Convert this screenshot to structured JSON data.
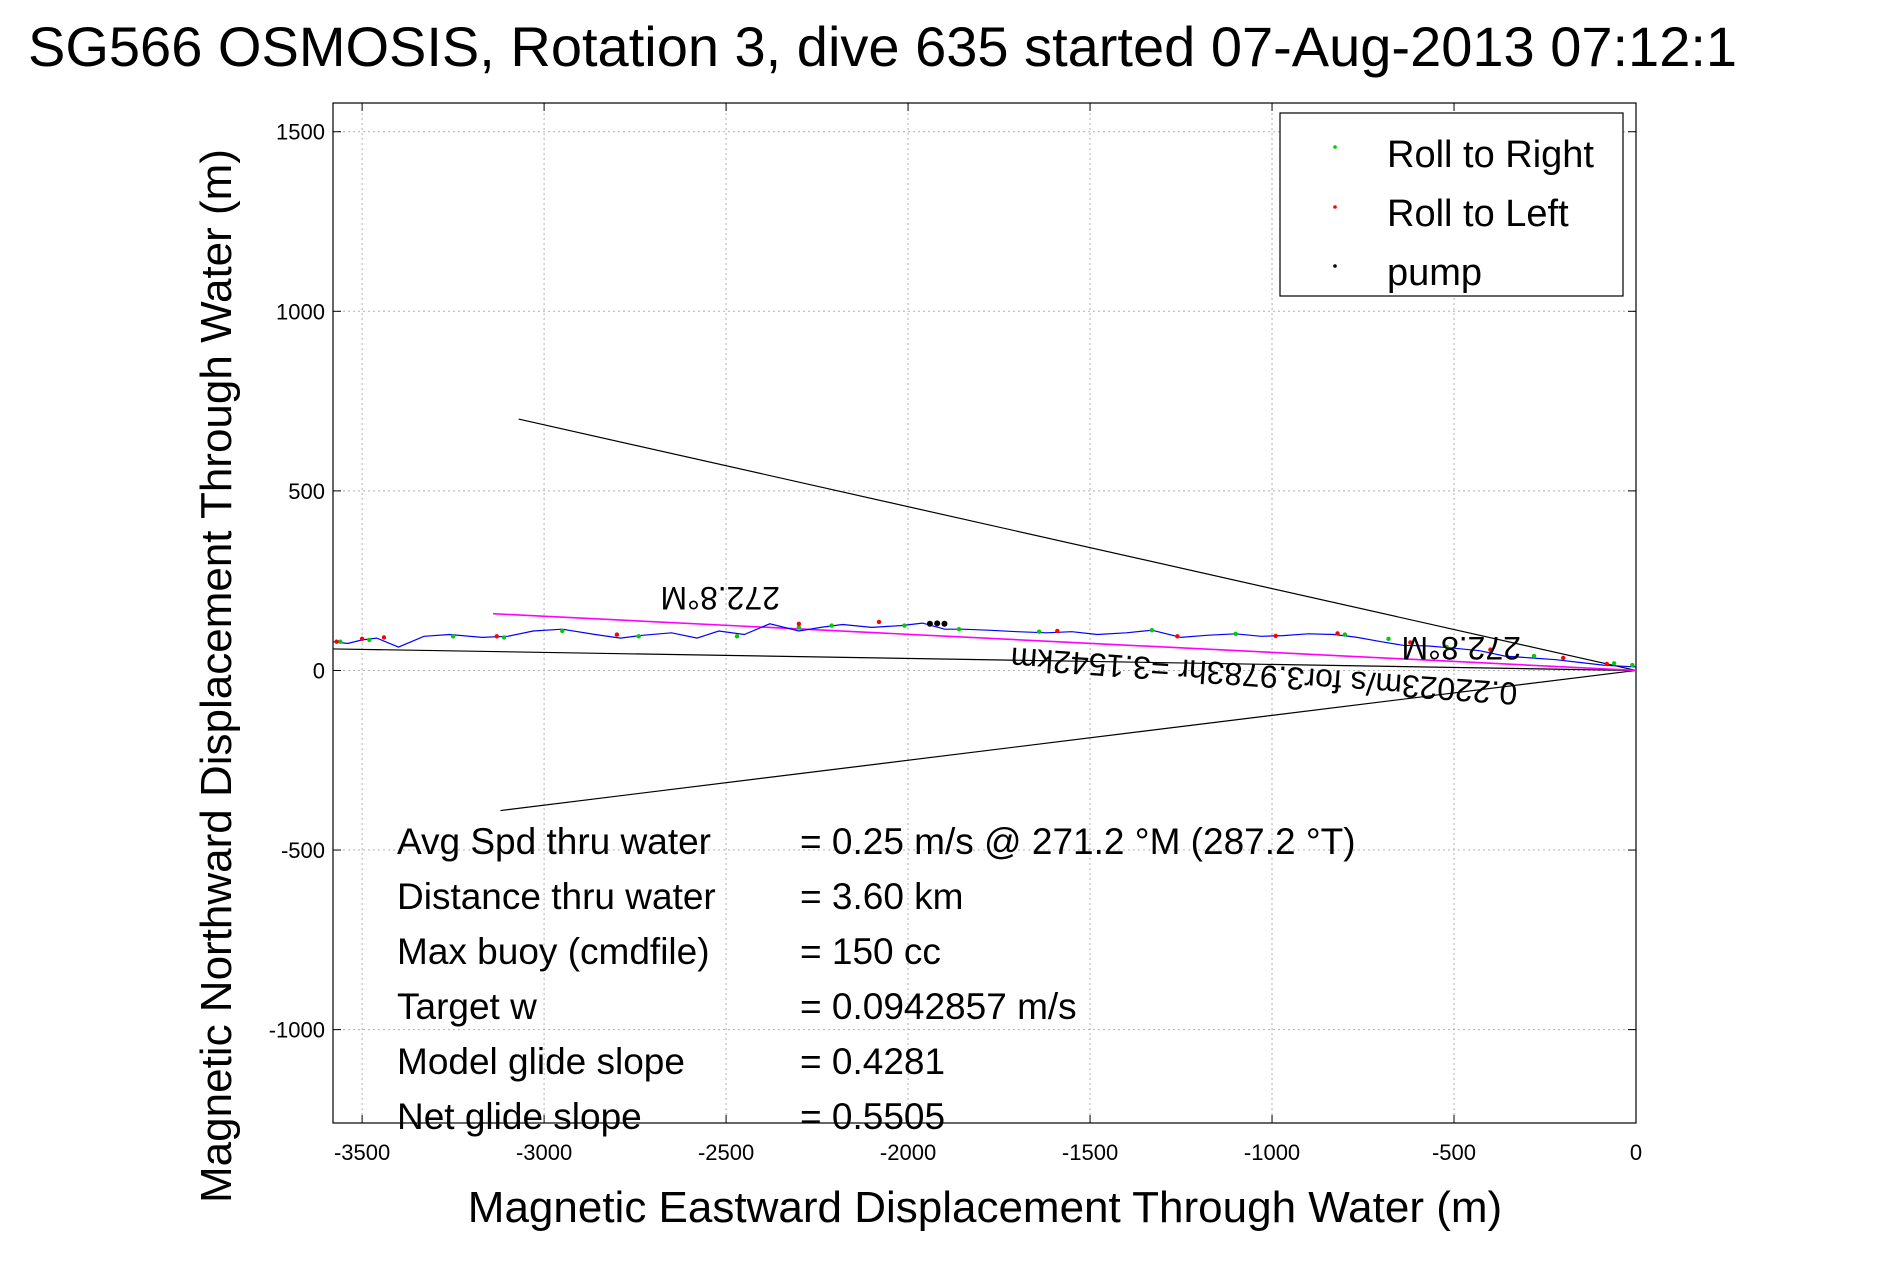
{
  "chart_data": {
    "type": "line",
    "title": "SG566 OSMOSIS, Rotation 3, dive 635 started 07-Aug-2013 07:12:1",
    "xlabel": "Magnetic Eastward Displacement Through Water (m)",
    "ylabel": "Magnetic Northward Displacement Through Water (m)",
    "xlim": [
      -3580,
      0
    ],
    "ylim": [
      -1260,
      1580
    ],
    "xticks": [
      -3500,
      -3000,
      -2500,
      -2000,
      -1500,
      -1000,
      -500,
      0
    ],
    "xtick_labels": [
      "-3500",
      "-3000",
      "-2500",
      "-2000",
      "-1500",
      "-1000",
      "-500",
      "0"
    ],
    "yticks": [
      -1000,
      -500,
      0,
      500,
      1000,
      1500
    ],
    "ytick_labels": [
      "-1000",
      "-500",
      "0",
      "500",
      "1000",
      "1500"
    ],
    "grid": true,
    "legend_position": "top-right",
    "legend": [
      {
        "label": "Roll to Right",
        "color": "#00cc00"
      },
      {
        "label": "Roll to Left",
        "color": "#ff0000"
      },
      {
        "label": "pump",
        "color": "#000000"
      }
    ],
    "track": {
      "color": "#0000ff",
      "x": [
        -3580,
        -3540,
        -3500,
        -3460,
        -3400,
        -3330,
        -3260,
        -3170,
        -3100,
        -3030,
        -2950,
        -2860,
        -2790,
        -2730,
        -2650,
        -2580,
        -2520,
        -2450,
        -2380,
        -2300,
        -2240,
        -2180,
        -2100,
        -2020,
        -1960,
        -1900,
        -1850,
        -1780,
        -1700,
        -1620,
        -1550,
        -1480,
        -1400,
        -1330,
        -1250,
        -1180,
        -1100,
        -1030,
        -970,
        -900,
        -830,
        -770,
        -700,
        -640,
        -570,
        -500,
        -430,
        -360,
        -290,
        -220,
        -150,
        -90,
        -40,
        0
      ],
      "y": [
        80,
        75,
        85,
        90,
        65,
        95,
        100,
        92,
        95,
        110,
        115,
        100,
        90,
        98,
        105,
        90,
        110,
        100,
        130,
        110,
        120,
        128,
        120,
        125,
        132,
        115,
        115,
        112,
        108,
        105,
        108,
        100,
        105,
        112,
        92,
        98,
        102,
        95,
        97,
        102,
        100,
        93,
        80,
        70,
        68,
        62,
        55,
        40,
        35,
        30,
        22,
        15,
        12,
        10
      ]
    },
    "roll_right_points": {
      "x": [
        -3560,
        -3480,
        -3250,
        -3110,
        -2950,
        -2740,
        -2470,
        -2300,
        -2210,
        -2010,
        -1860,
        -1640,
        -1330,
        -1100,
        -800,
        -680,
        -520,
        -280,
        -60,
        -10
      ],
      "y": [
        80,
        85,
        95,
        92,
        110,
        95,
        95,
        120,
        125,
        125,
        115,
        108,
        112,
        102,
        100,
        88,
        65,
        40,
        20,
        15
      ]
    },
    "roll_left_points": {
      "x": [
        -3570,
        -3500,
        -3440,
        -3130,
        -2800,
        -2300,
        -2080,
        -1900,
        -1590,
        -1260,
        -990,
        -820,
        -620,
        -400,
        -200,
        -80
      ],
      "y": [
        80,
        88,
        92,
        95,
        100,
        130,
        135,
        130,
        110,
        95,
        96,
        103,
        78,
        58,
        35,
        18
      ]
    },
    "pump_points": {
      "x": [
        -1940,
        -1920,
        -1900
      ],
      "y": [
        130,
        131,
        130
      ]
    },
    "heading_line": {
      "color": "#ff00ff",
      "x": [
        -3140,
        0
      ],
      "y": [
        158,
        0
      ]
    },
    "current_line": {
      "color": "#000000",
      "x": [
        -3580,
        0
      ],
      "y": [
        60,
        0
      ]
    },
    "envelope_lines": {
      "color": "#000000",
      "upper": {
        "x": [
          -3070,
          0
        ],
        "y": [
          700,
          0
        ]
      },
      "lower": {
        "x": [
          -3120,
          0
        ],
        "y": [
          -390,
          0
        ]
      }
    },
    "heading_label_upper": "272.8°M",
    "heading_label_lower": "272.8°M",
    "current_label": "0.22023m/s for3.9783hr =3.1542km",
    "stats": [
      {
        "label": "Avg Spd thru water",
        "value": "=  0.25 m/s @ 271.2 °M (287.2 °T)"
      },
      {
        "label": "Distance thru water",
        "value": "=  3.60 km"
      },
      {
        "label": "Max buoy (cmdfile)",
        "value": "= 150 cc"
      },
      {
        "label": "Target w",
        "value": "= 0.0942857 m/s"
      },
      {
        "label": "Model glide slope",
        "value": "= 0.4281"
      },
      {
        "label": "Net glide slope",
        "value": "= 0.5505"
      }
    ]
  }
}
